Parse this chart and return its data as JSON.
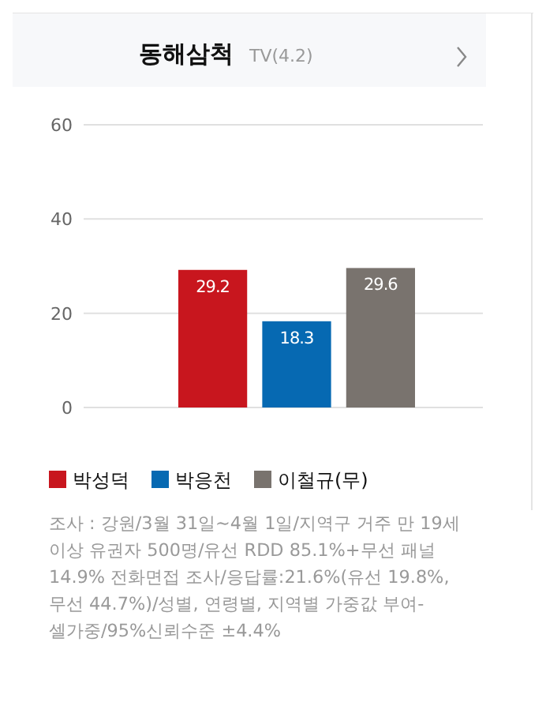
{
  "chart_data": {
    "type": "bar",
    "title": "동해삼척",
    "subtitle": "TV(4.2)",
    "categories": [
      null
    ],
    "series": [
      {
        "name": "박성덕",
        "color": "#c8161e",
        "values": [
          29.2
        ]
      },
      {
        "name": "박응천",
        "color": "#0669b2",
        "values": [
          18.3
        ]
      },
      {
        "name": "이철규(무)",
        "color": "#79736e",
        "values": [
          29.6
        ]
      }
    ],
    "ylim": [
      0,
      60
    ],
    "yticks": [
      0,
      20,
      40,
      60
    ],
    "grid": "y",
    "data_labels": true,
    "legend": "bottom",
    "annotations": [
      "조사 : 강원/3월 31일~4월 1일/지역구 거주 만 19세 이상 유권자 500명/유선 RDD 85.1%+무선 패널 14.9% 전화면접 조사/응답률:21.6%(유선 19.8%, 무선 44.7%)/성별, 연령별, 지역별 가중값 부여-셀가중/95%신뢰수준 ±4.4%"
    ]
  }
}
